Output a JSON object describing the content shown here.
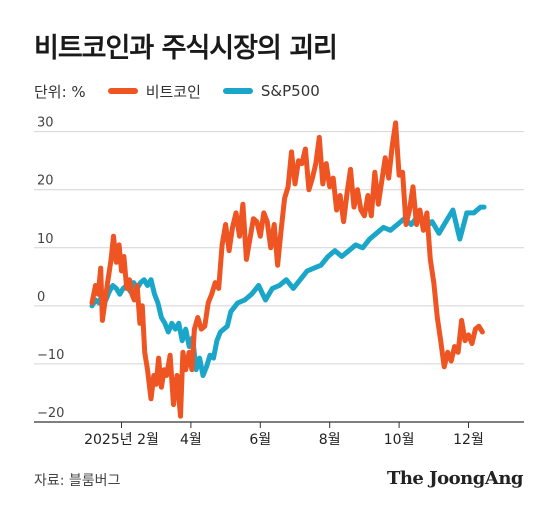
{
  "title": "비트코인과 주식시장의 괴리",
  "legend": {
    "unit_label": "단위: %",
    "series": [
      {
        "name": "비트코인",
        "color": "#ee5522"
      },
      {
        "name": "S&P500",
        "color": "#1aa6c9"
      }
    ]
  },
  "source": "자료: 블룸버그",
  "brand": "The JoongAng",
  "chart_data": {
    "type": "line",
    "ylim": [
      -20,
      32
    ],
    "yticks": [
      -20,
      -10,
      0,
      10,
      20,
      30
    ],
    "ytick_labels": [
      "−20",
      "−10",
      "0",
      "10",
      "20",
      "30"
    ],
    "xlim": [
      0,
      11.7
    ],
    "xticks": [
      0.85,
      2.85,
      4.85,
      6.85,
      8.85,
      10.85
    ],
    "xtick_labels": [
      "2025년 2월",
      "4월",
      "6월",
      "8월",
      "10월",
      "12월"
    ],
    "grid": true,
    "legend_position": "top-left",
    "series": [
      {
        "name": "비트코인",
        "color": "#ee5522",
        "x": [
          0.0,
          0.1,
          0.18,
          0.25,
          0.3,
          0.38,
          0.45,
          0.55,
          0.62,
          0.7,
          0.78,
          0.85,
          0.92,
          1.0,
          1.08,
          1.15,
          1.22,
          1.3,
          1.38,
          1.45,
          1.52,
          1.6,
          1.7,
          1.78,
          1.85,
          1.92,
          2.0,
          2.08,
          2.15,
          2.25,
          2.35,
          2.45,
          2.55,
          2.62,
          2.7,
          2.8,
          2.88,
          2.95,
          3.05,
          3.15,
          3.25,
          3.35,
          3.45,
          3.55,
          3.65,
          3.75,
          3.85,
          3.95,
          4.05,
          4.15,
          4.25,
          4.35,
          4.45,
          4.55,
          4.65,
          4.75,
          4.85,
          4.95,
          5.05,
          5.15,
          5.25,
          5.35,
          5.45,
          5.55,
          5.65,
          5.75,
          5.85,
          5.95,
          6.05,
          6.15,
          6.25,
          6.35,
          6.45,
          6.55,
          6.65,
          6.75,
          6.85,
          6.95,
          7.05,
          7.15,
          7.25,
          7.35,
          7.45,
          7.55,
          7.65,
          7.75,
          7.85,
          7.95,
          8.05,
          8.15,
          8.25,
          8.35,
          8.45,
          8.55,
          8.65,
          8.75,
          8.85,
          8.95,
          9.05,
          9.15,
          9.25,
          9.35,
          9.45,
          9.55,
          9.65,
          9.75,
          9.85,
          9.95,
          10.05,
          10.15,
          10.25,
          10.35,
          10.45,
          10.55,
          10.65,
          10.75,
          10.85,
          10.95,
          11.05,
          11.15,
          11.25
        ],
        "values": [
          0.5,
          3.5,
          2.0,
          6.5,
          -2.5,
          1.0,
          4.0,
          8.0,
          12.0,
          7.5,
          10.5,
          6.0,
          8.5,
          3.0,
          4.5,
          2.0,
          1.0,
          3.5,
          -3.0,
          0.0,
          -8.0,
          -11.0,
          -16.0,
          -12.0,
          -13.5,
          -9.0,
          -14.0,
          -11.0,
          -12.0,
          -8.5,
          -17.0,
          -12.0,
          -19.0,
          -8.0,
          -11.0,
          -8.0,
          -11.0,
          -4.0,
          -2.0,
          -4.0,
          -3.5,
          0.5,
          2.0,
          4.0,
          3.0,
          10.5,
          14.0,
          9.5,
          13.5,
          16.0,
          12.0,
          17.5,
          8.0,
          11.5,
          15.0,
          14.5,
          12.0,
          16.0,
          14.5,
          10.0,
          14.0,
          7.0,
          13.0,
          18.5,
          20.5,
          26.5,
          21.0,
          25.0,
          24.5,
          27.0,
          20.0,
          22.0,
          24.5,
          29.0,
          21.0,
          24.5,
          20.5,
          22.0,
          16.5,
          19.0,
          14.5,
          19.5,
          23.5,
          17.0,
          20.0,
          16.5,
          15.5,
          19.0,
          15.5,
          23.0,
          17.5,
          21.5,
          25.5,
          22.0,
          27.5,
          31.5,
          22.5,
          23.0,
          14.0,
          16.5,
          20.5,
          14.0,
          16.5,
          13.0,
          16.0,
          8.0,
          4.0,
          -2.0,
          -6.0,
          -10.5,
          -8.0,
          -9.5,
          -7.0,
          -8.0,
          -2.5,
          -6.0,
          -5.0,
          -6.5,
          -4.0,
          -3.5,
          -4.5
        ]
      },
      {
        "name": "S&P500",
        "color": "#1aa6c9",
        "x": [
          0.0,
          0.1,
          0.2,
          0.3,
          0.4,
          0.5,
          0.6,
          0.7,
          0.8,
          0.9,
          1.0,
          1.1,
          1.2,
          1.3,
          1.4,
          1.5,
          1.6,
          1.7,
          1.8,
          1.9,
          2.0,
          2.1,
          2.2,
          2.3,
          2.4,
          2.5,
          2.6,
          2.7,
          2.8,
          2.9,
          3.0,
          3.1,
          3.2,
          3.3,
          3.4,
          3.5,
          3.6,
          3.7,
          3.8,
          3.9,
          4.0,
          4.2,
          4.4,
          4.6,
          4.8,
          5.0,
          5.2,
          5.4,
          5.6,
          5.8,
          6.0,
          6.2,
          6.4,
          6.6,
          6.8,
          7.0,
          7.2,
          7.4,
          7.6,
          7.8,
          8.0,
          8.2,
          8.4,
          8.6,
          8.8,
          9.0,
          9.2,
          9.4,
          9.6,
          9.8,
          10.0,
          10.2,
          10.4,
          10.6,
          10.8,
          11.0,
          11.2,
          11.3
        ],
        "values": [
          0.0,
          1.0,
          0.5,
          2.0,
          1.0,
          2.5,
          3.5,
          3.0,
          2.0,
          3.0,
          3.5,
          2.5,
          4.0,
          3.0,
          4.0,
          4.5,
          3.5,
          4.5,
          2.0,
          0.5,
          -2.0,
          -3.0,
          -4.5,
          -3.0,
          -4.0,
          -3.0,
          -6.0,
          -4.0,
          -7.0,
          -5.5,
          -11.0,
          -9.0,
          -12.0,
          -10.5,
          -8.5,
          -9.0,
          -6.0,
          -4.5,
          -4.0,
          -3.5,
          -1.0,
          0.5,
          1.0,
          2.0,
          3.5,
          1.0,
          3.0,
          3.5,
          4.5,
          3.0,
          4.5,
          6.0,
          6.5,
          7.0,
          8.5,
          9.5,
          8.5,
          9.5,
          10.5,
          10.0,
          11.5,
          12.5,
          13.5,
          13.0,
          14.0,
          15.0,
          14.0,
          15.5,
          13.5,
          14.5,
          12.5,
          14.5,
          16.5,
          11.5,
          16.0,
          16.0,
          17.0,
          17.0
        ]
      }
    ]
  }
}
